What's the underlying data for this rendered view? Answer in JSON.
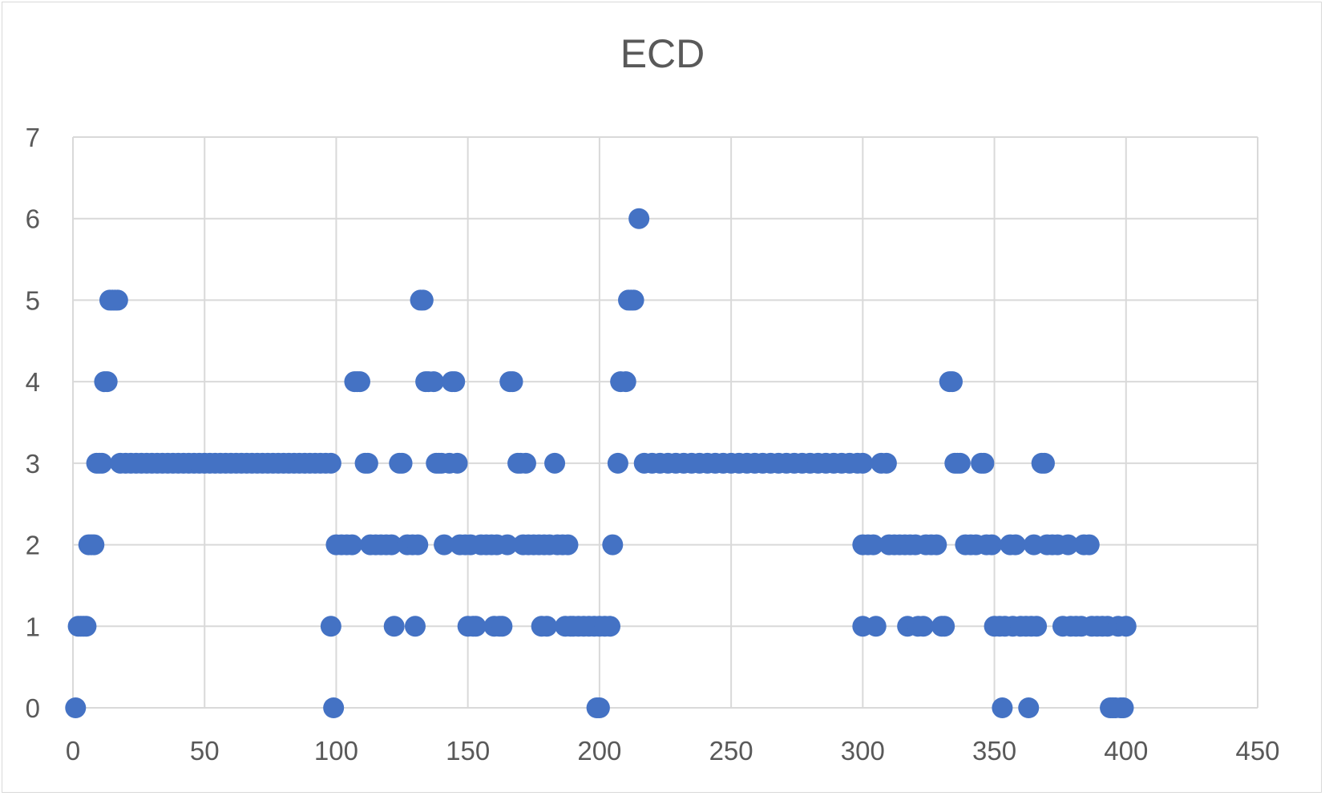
{
  "chart_data": {
    "type": "scatter",
    "title": "ECD",
    "xlabel": "",
    "ylabel": "",
    "xlim": [
      0,
      450
    ],
    "ylim": [
      0,
      7
    ],
    "x_ticks": [
      0,
      50,
      100,
      150,
      200,
      250,
      300,
      350,
      400,
      450
    ],
    "y_ticks": [
      0,
      1,
      2,
      3,
      4,
      5,
      6,
      7
    ],
    "grid": true,
    "legend": "none",
    "marker_color": "#4472C4",
    "series": [
      {
        "points": [
          [
            1,
            0
          ],
          [
            2,
            1
          ],
          [
            3,
            1
          ],
          [
            4,
            1
          ],
          [
            5,
            1
          ],
          [
            6,
            2
          ],
          [
            7,
            2
          ],
          [
            8,
            2
          ],
          [
            9,
            3
          ],
          [
            10,
            3
          ],
          [
            11,
            3
          ],
          [
            12,
            4
          ],
          [
            13,
            4
          ],
          [
            14,
            5
          ],
          [
            15,
            5
          ],
          [
            16,
            5
          ],
          [
            17,
            5
          ],
          [
            18,
            3
          ],
          [
            20,
            3
          ],
          [
            22,
            3
          ],
          [
            24,
            3
          ],
          [
            26,
            3
          ],
          [
            28,
            3
          ],
          [
            30,
            3
          ],
          [
            32,
            3
          ],
          [
            34,
            3
          ],
          [
            36,
            3
          ],
          [
            38,
            3
          ],
          [
            40,
            3
          ],
          [
            42,
            3
          ],
          [
            44,
            3
          ],
          [
            46,
            3
          ],
          [
            48,
            3
          ],
          [
            50,
            3
          ],
          [
            52,
            3
          ],
          [
            54,
            3
          ],
          [
            56,
            3
          ],
          [
            58,
            3
          ],
          [
            60,
            3
          ],
          [
            62,
            3
          ],
          [
            64,
            3
          ],
          [
            66,
            3
          ],
          [
            68,
            3
          ],
          [
            70,
            3
          ],
          [
            72,
            3
          ],
          [
            74,
            3
          ],
          [
            76,
            3
          ],
          [
            78,
            3
          ],
          [
            80,
            3
          ],
          [
            82,
            3
          ],
          [
            84,
            3
          ],
          [
            86,
            3
          ],
          [
            88,
            3
          ],
          [
            90,
            3
          ],
          [
            92,
            3
          ],
          [
            94,
            3
          ],
          [
            96,
            3
          ],
          [
            98,
            3
          ],
          [
            98,
            1
          ],
          [
            99,
            0
          ],
          [
            100,
            2
          ],
          [
            102,
            2
          ],
          [
            104,
            2
          ],
          [
            106,
            2
          ],
          [
            107,
            4
          ],
          [
            108,
            4
          ],
          [
            109,
            4
          ],
          [
            111,
            3
          ],
          [
            112,
            3
          ],
          [
            113,
            2
          ],
          [
            115,
            2
          ],
          [
            117,
            2
          ],
          [
            119,
            2
          ],
          [
            121,
            2
          ],
          [
            122,
            1
          ],
          [
            124,
            3
          ],
          [
            125,
            3
          ],
          [
            127,
            2
          ],
          [
            129,
            2
          ],
          [
            130,
            1
          ],
          [
            131,
            2
          ],
          [
            132,
            5
          ],
          [
            133,
            5
          ],
          [
            134,
            4
          ],
          [
            135,
            4
          ],
          [
            137,
            4
          ],
          [
            138,
            3
          ],
          [
            139,
            3
          ],
          [
            140,
            3
          ],
          [
            141,
            2
          ],
          [
            143,
            3
          ],
          [
            144,
            4
          ],
          [
            145,
            4
          ],
          [
            146,
            3
          ],
          [
            147,
            2
          ],
          [
            149,
            2
          ],
          [
            150,
            1
          ],
          [
            151,
            2
          ],
          [
            152,
            1
          ],
          [
            153,
            1
          ],
          [
            155,
            2
          ],
          [
            157,
            2
          ],
          [
            159,
            2
          ],
          [
            160,
            1
          ],
          [
            161,
            2
          ],
          [
            162,
            1
          ],
          [
            163,
            1
          ],
          [
            165,
            2
          ],
          [
            166,
            4
          ],
          [
            167,
            4
          ],
          [
            169,
            3
          ],
          [
            170,
            3
          ],
          [
            171,
            2
          ],
          [
            172,
            3
          ],
          [
            173,
            2
          ],
          [
            175,
            2
          ],
          [
            177,
            2
          ],
          [
            178,
            1
          ],
          [
            179,
            2
          ],
          [
            180,
            1
          ],
          [
            181,
            2
          ],
          [
            183,
            3
          ],
          [
            184,
            2
          ],
          [
            186,
            2
          ],
          [
            187,
            1
          ],
          [
            188,
            2
          ],
          [
            189,
            1
          ],
          [
            190,
            1
          ],
          [
            192,
            1
          ],
          [
            194,
            1
          ],
          [
            196,
            1
          ],
          [
            198,
            1
          ],
          [
            199,
            0
          ],
          [
            200,
            1
          ],
          [
            200,
            0
          ],
          [
            202,
            1
          ],
          [
            204,
            1
          ],
          [
            205,
            2
          ],
          [
            207,
            3
          ],
          [
            208,
            4
          ],
          [
            210,
            4
          ],
          [
            211,
            5
          ],
          [
            212,
            5
          ],
          [
            213,
            5
          ],
          [
            215,
            6
          ],
          [
            217,
            3
          ],
          [
            220,
            3
          ],
          [
            223,
            3
          ],
          [
            226,
            3
          ],
          [
            229,
            3
          ],
          [
            232,
            3
          ],
          [
            235,
            3
          ],
          [
            238,
            3
          ],
          [
            241,
            3
          ],
          [
            244,
            3
          ],
          [
            247,
            3
          ],
          [
            250,
            3
          ],
          [
            253,
            3
          ],
          [
            256,
            3
          ],
          [
            259,
            3
          ],
          [
            262,
            3
          ],
          [
            265,
            3
          ],
          [
            268,
            3
          ],
          [
            271,
            3
          ],
          [
            274,
            3
          ],
          [
            277,
            3
          ],
          [
            280,
            3
          ],
          [
            283,
            3
          ],
          [
            286,
            3
          ],
          [
            289,
            3
          ],
          [
            292,
            3
          ],
          [
            295,
            3
          ],
          [
            298,
            3
          ],
          [
            300,
            3
          ],
          [
            300,
            1
          ],
          [
            300,
            2
          ],
          [
            302,
            2
          ],
          [
            304,
            2
          ],
          [
            305,
            1
          ],
          [
            307,
            3
          ],
          [
            309,
            3
          ],
          [
            310,
            2
          ],
          [
            312,
            2
          ],
          [
            314,
            2
          ],
          [
            316,
            2
          ],
          [
            317,
            1
          ],
          [
            318,
            2
          ],
          [
            320,
            2
          ],
          [
            321,
            1
          ],
          [
            323,
            1
          ],
          [
            324,
            2
          ],
          [
            326,
            2
          ],
          [
            328,
            2
          ],
          [
            330,
            1
          ],
          [
            331,
            1
          ],
          [
            333,
            4
          ],
          [
            334,
            4
          ],
          [
            335,
            3
          ],
          [
            336,
            3
          ],
          [
            337,
            3
          ],
          [
            339,
            2
          ],
          [
            341,
            2
          ],
          [
            343,
            2
          ],
          [
            345,
            3
          ],
          [
            346,
            3
          ],
          [
            347,
            2
          ],
          [
            349,
            2
          ],
          [
            350,
            1
          ],
          [
            352,
            1
          ],
          [
            353,
            0
          ],
          [
            354,
            1
          ],
          [
            356,
            2
          ],
          [
            357,
            1
          ],
          [
            358,
            2
          ],
          [
            360,
            1
          ],
          [
            362,
            1
          ],
          [
            363,
            0
          ],
          [
            364,
            1
          ],
          [
            365,
            2
          ],
          [
            366,
            1
          ],
          [
            368,
            3
          ],
          [
            369,
            3
          ],
          [
            370,
            2
          ],
          [
            372,
            2
          ],
          [
            374,
            2
          ],
          [
            376,
            1
          ],
          [
            378,
            2
          ],
          [
            379,
            1
          ],
          [
            381,
            1
          ],
          [
            383,
            1
          ],
          [
            384,
            2
          ],
          [
            386,
            2
          ],
          [
            387,
            1
          ],
          [
            389,
            1
          ],
          [
            391,
            1
          ],
          [
            393,
            1
          ],
          [
            394,
            0
          ],
          [
            395,
            0
          ],
          [
            396,
            0
          ],
          [
            397,
            1
          ],
          [
            398,
            0
          ],
          [
            399,
            0
          ],
          [
            400,
            1
          ]
        ]
      }
    ]
  }
}
